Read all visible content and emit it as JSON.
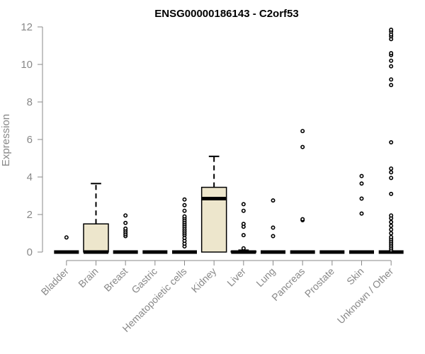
{
  "chart_data": {
    "type": "box",
    "title": "ENSG00000186143 - C2orf53",
    "xlabel": "",
    "ylabel": "Expression",
    "ylim": [
      0,
      12
    ],
    "yticks": [
      0,
      2,
      4,
      6,
      8,
      10,
      12
    ],
    "grid": false,
    "legend": "none",
    "box_fill": "#ede6cc",
    "categories": [
      "Bladder",
      "Brain",
      "Breast",
      "Gastric",
      "Hematopoietic cells",
      "Kidney",
      "Liver",
      "Lung",
      "Pancreas",
      "Prostate",
      "Skin",
      "Unknown / Other"
    ],
    "boxes": [
      {
        "q1": 0,
        "median": 0,
        "q3": 0,
        "whisker_low": 0,
        "whisker_high": 0,
        "outliers": [
          0.78
        ]
      },
      {
        "q1": 0,
        "median": 0,
        "q3": 1.5,
        "whisker_low": 0,
        "whisker_high": 3.65,
        "outliers": []
      },
      {
        "q1": 0,
        "median": 0,
        "q3": 0,
        "whisker_low": 0,
        "whisker_high": 0,
        "outliers": [
          0.85,
          0.95,
          1.05,
          1.15,
          1.25,
          1.55,
          1.95
        ]
      },
      {
        "q1": 0,
        "median": 0,
        "q3": 0,
        "whisker_low": 0,
        "whisker_high": 0,
        "outliers": []
      },
      {
        "q1": 0,
        "median": 0,
        "q3": 0,
        "whisker_low": 0,
        "whisker_high": 0,
        "outliers": [
          0.3,
          0.45,
          0.6,
          0.75,
          0.9,
          1.0,
          1.1,
          1.2,
          1.3,
          1.4,
          1.5,
          1.6,
          1.7,
          1.8,
          1.9,
          2.2,
          2.5,
          2.8
        ]
      },
      {
        "q1": 0,
        "median": 2.85,
        "q3": 3.45,
        "whisker_low": 0,
        "whisker_high": 5.1,
        "outliers": []
      },
      {
        "q1": 0,
        "median": 0,
        "q3": 0.05,
        "whisker_low": 0,
        "whisker_high": 0.1,
        "outliers": [
          0.2,
          0.9,
          1.35,
          1.5,
          2.2,
          2.55
        ]
      },
      {
        "q1": 0,
        "median": 0,
        "q3": 0,
        "whisker_low": 0,
        "whisker_high": 0,
        "outliers": [
          0.85,
          1.3,
          2.75
        ]
      },
      {
        "q1": 0,
        "median": 0,
        "q3": 0,
        "whisker_low": 0,
        "whisker_high": 0,
        "outliers": [
          1.7,
          1.75,
          5.6,
          6.45
        ]
      },
      {
        "q1": 0,
        "median": 0,
        "q3": 0,
        "whisker_low": 0,
        "whisker_high": 0,
        "outliers": []
      },
      {
        "q1": 0,
        "median": 0,
        "q3": 0,
        "whisker_low": 0,
        "whisker_high": 0,
        "outliers": [
          2.05,
          2.85,
          3.65,
          4.05
        ]
      },
      {
        "q1": 0,
        "median": 0,
        "q3": 0,
        "whisker_low": 0,
        "whisker_high": 0,
        "outliers": [
          0.1,
          0.2,
          0.3,
          0.4,
          0.5,
          0.6,
          0.7,
          0.8,
          1.0,
          1.2,
          1.4,
          1.6,
          1.8,
          1.95,
          3.1,
          3.95,
          4.25,
          4.45,
          5.85,
          8.9,
          9.2,
          9.9,
          10.2,
          10.5,
          10.6,
          11.35,
          11.5,
          11.6,
          11.75,
          11.85
        ]
      }
    ]
  }
}
